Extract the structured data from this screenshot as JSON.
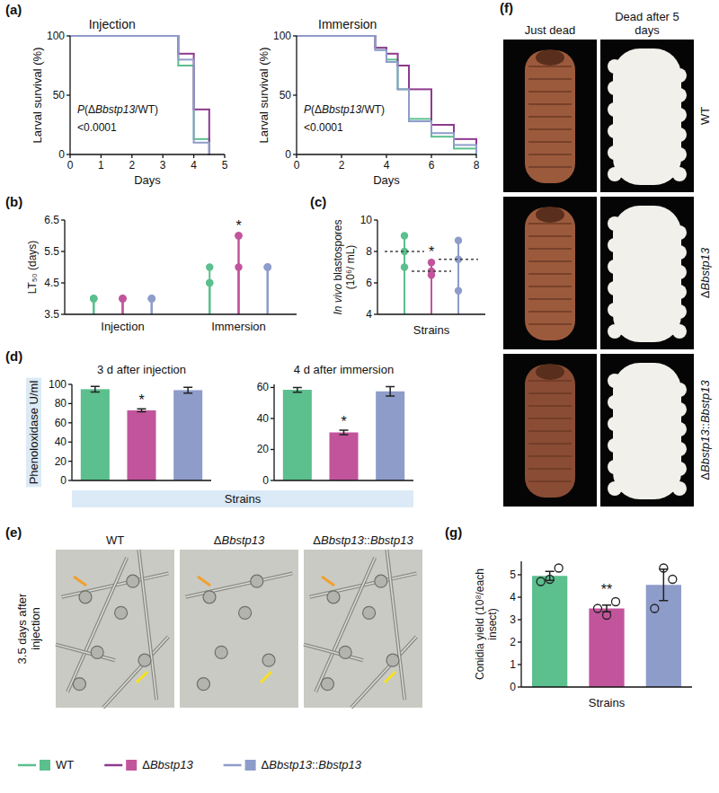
{
  "chart_data": [
    {
      "panel": "(a)",
      "type": "line",
      "title": "Injection",
      "x_label": "Days",
      "y_label": "Larval survival (%)",
      "line_style": "step",
      "legend": "bottom",
      "x": [
        0,
        3.5,
        4,
        4.5
      ],
      "xlim": [
        0,
        5
      ],
      "xticks": [
        0,
        1,
        2,
        3,
        4,
        5
      ],
      "ylim": [
        0,
        100
      ],
      "yticks": [
        0,
        50,
        100
      ],
      "annotations": [
        "P(ΔBbstp13/WT)",
        "<0.0001"
      ],
      "series": [
        {
          "name": "WT",
          "color": "#5bbf8e",
          "values": [
            100,
            75,
            13,
            0
          ]
        },
        {
          "name": "ΔBbstp13",
          "color": "#8e3a8e",
          "values": [
            100,
            85,
            38,
            0
          ]
        },
        {
          "name": "ΔBbstp13::Bbstp13",
          "color": "#8e9cca",
          "values": [
            100,
            80,
            10,
            0
          ]
        }
      ]
    },
    {
      "type": "line",
      "title": "Immersion",
      "x_label": "Days",
      "y_label": "Larval survival (%)",
      "line_style": "step",
      "x": [
        0,
        3.5,
        4,
        4.5,
        5,
        6,
        7,
        8
      ],
      "xlim": [
        0,
        8
      ],
      "xticks": [
        0,
        2,
        4,
        6,
        8
      ],
      "ylim": [
        0,
        100
      ],
      "yticks": [
        0,
        50,
        100
      ],
      "annotations": [
        "P(ΔBbstp13/WT)",
        "<0.0001"
      ],
      "series": [
        {
          "name": "WT",
          "color": "#5bbf8e",
          "values": [
            100,
            90,
            80,
            55,
            30,
            15,
            5,
            0
          ]
        },
        {
          "name": "ΔBbstp13",
          "color": "#8e3a8e",
          "values": [
            100,
            90,
            85,
            75,
            55,
            25,
            13,
            0
          ]
        },
        {
          "name": "ΔBbstp13::Bbstp13",
          "color": "#8e9cca",
          "values": [
            100,
            88,
            78,
            55,
            28,
            18,
            8,
            0
          ]
        }
      ]
    },
    {
      "panel": "(b)",
      "type": "dot",
      "y_label": "LT₅₀ (days)",
      "categories": [
        "Injection",
        "Immersion"
      ],
      "ylim": [
        3.5,
        6.5
      ],
      "yticks": [
        3.5,
        4.5,
        5.5,
        6.5
      ],
      "series": [
        {
          "name": "WT",
          "color": "#5bbf8e",
          "values": [
            [
              4,
              4,
              4
            ],
            [
              4.5,
              4.5,
              5
            ]
          ]
        },
        {
          "name": "ΔBbstp13",
          "color": "#c2549c",
          "values": [
            [
              4,
              4,
              4
            ],
            [
              6,
              6,
              5
            ]
          ]
        },
        {
          "name": "ΔBbstp13::Bbstp13",
          "color": "#8e9cca",
          "values": [
            [
              4,
              4,
              4
            ],
            [
              5,
              5,
              5
            ]
          ]
        }
      ],
      "annotations": [
        {
          "text": "*",
          "series": 1,
          "category": 1
        }
      ]
    },
    {
      "panel": "(c)",
      "type": "dot",
      "x_label": "Strains",
      "y_label": "In vivo blastospores (10⁶/ mL)",
      "tick_labels": "y",
      "ylim": [
        4,
        10
      ],
      "yticks": [
        4,
        6,
        8,
        10
      ],
      "series": [
        {
          "name": "WT",
          "color": "#5bbf8e",
          "values": [
            9,
            8,
            7
          ],
          "median": 8
        },
        {
          "name": "ΔBbstp13",
          "color": "#c2549c",
          "values": [
            7.3,
            6.75,
            6.5
          ],
          "median": 6.75
        },
        {
          "name": "ΔBbstp13::Bbstp13",
          "color": "#8e9cca",
          "values": [
            8.7,
            7.5,
            5.5
          ],
          "median": 7.5
        }
      ],
      "annotations": [
        {
          "text": "*",
          "series": 1
        }
      ]
    },
    {
      "panel": "(d)",
      "type": "bar",
      "title": "3 d after injection",
      "y_label": "Phenoloxidase U/ml",
      "x_label": "Strains",
      "tick_labels": "y",
      "categories": [
        null,
        null,
        null
      ],
      "values": [
        95,
        73,
        94
      ],
      "errors": [
        3,
        1.5,
        3
      ],
      "colors": [
        "#5bbf8e",
        "#c2549c",
        "#8e9cca"
      ],
      "ylim": [
        0,
        100
      ],
      "yticks": [
        0,
        20,
        40,
        60,
        80,
        100
      ],
      "annotations": [
        {
          "text": "*",
          "index": 1
        }
      ]
    },
    {
      "type": "bar",
      "title": "4 d after immersion",
      "tick_labels": "y",
      "categories": [
        null,
        null,
        null
      ],
      "values": [
        58.5,
        31,
        57.5
      ],
      "errors": [
        1.5,
        1.5,
        3
      ],
      "colors": [
        "#5bbf8e",
        "#c2549c",
        "#8e9cca"
      ],
      "ylim": [
        0,
        62
      ],
      "yticks": [
        0,
        20,
        40,
        60
      ],
      "annotations": [
        {
          "text": "*",
          "index": 1
        }
      ]
    },
    {
      "panel": "(g)",
      "type": "bar",
      "y_label": "Conidia yield (10⁸/each insect)",
      "x_label": "Strains",
      "tick_labels": "y",
      "categories": [
        null,
        null,
        null
      ],
      "values": [
        4.95,
        3.5,
        4.55
      ],
      "errors": [
        0.2,
        0.15,
        0.7
      ],
      "points": [
        [
          4.7,
          4.8,
          5.3
        ],
        [
          3.5,
          3.2,
          3.8
        ],
        [
          3.5,
          5.3,
          4.8
        ]
      ],
      "colors": [
        "#5bbf8e",
        "#c2549c",
        "#8e9cca"
      ],
      "ylim": [
        0,
        5.6
      ],
      "yticks": [
        0,
        1,
        2,
        3,
        4,
        5
      ],
      "annotations": [
        {
          "text": "**",
          "index": 1
        }
      ]
    }
  ],
  "images": [
    {
      "panel": "(e)",
      "side_label": "3.5 days after injection",
      "columns": [
        "WT",
        "ΔBbstp13",
        "ΔBbstp13::Bbstp13"
      ]
    },
    {
      "panel": "(f)",
      "columns": [
        "Just dead",
        "Dead after 5 days"
      ],
      "rows": [
        "WT",
        "ΔBbstp13",
        "ΔBbstp13::Bbstp13"
      ]
    }
  ]
}
